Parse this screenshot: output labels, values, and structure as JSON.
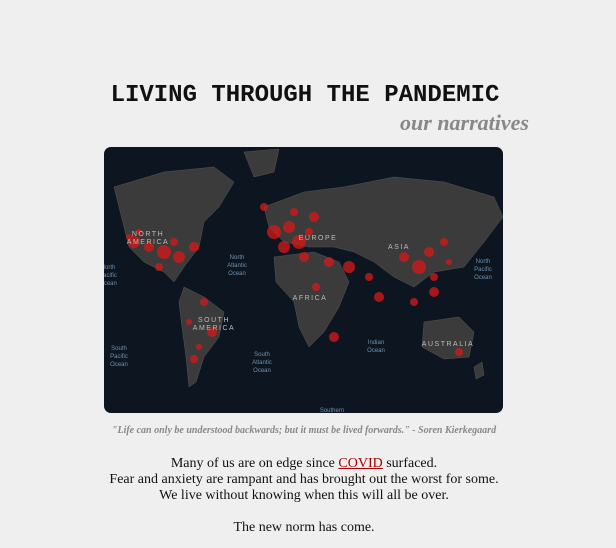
{
  "header": {
    "title": "LIVING THROUGH THE PANDEMIC",
    "subtitle": "our narratives"
  },
  "map": {
    "labels": {
      "north_america": [
        "NORTH",
        "AMERICA"
      ],
      "europe": [
        "EUROPE"
      ],
      "asia": [
        "ASIA"
      ],
      "africa": [
        "AFRICA"
      ],
      "south_america": [
        "SOUTH",
        "AMERICA"
      ],
      "australia": [
        "AUSTRALIA"
      ],
      "north_atlantic": [
        "North",
        "Atlantic",
        "Ocean"
      ],
      "north_pacific_left": [
        "North",
        "Pacific",
        "Ocean"
      ],
      "north_pacific_right": [
        "North",
        "Pacific",
        "Ocean"
      ],
      "south_pacific": [
        "South",
        "Pacific",
        "Ocean"
      ],
      "south_atlantic": [
        "South",
        "Atlantic",
        "Ocean"
      ],
      "indian": [
        "Indian",
        "Ocean"
      ],
      "southern": [
        "Southern"
      ]
    }
  },
  "quote": "\"Life can only be understood backwards; but it must be lived forwards.\" - Soren Kierkegaard",
  "body": {
    "line1_before": "Many of us are on edge since ",
    "line1_link": "COVID",
    "line1_after": " surfaced.",
    "line2": "Fear and anxiety are rampant and has brought out the worst for some.",
    "line3": "We live without knowing when this will all be over.",
    "line4": "The new norm has come."
  }
}
